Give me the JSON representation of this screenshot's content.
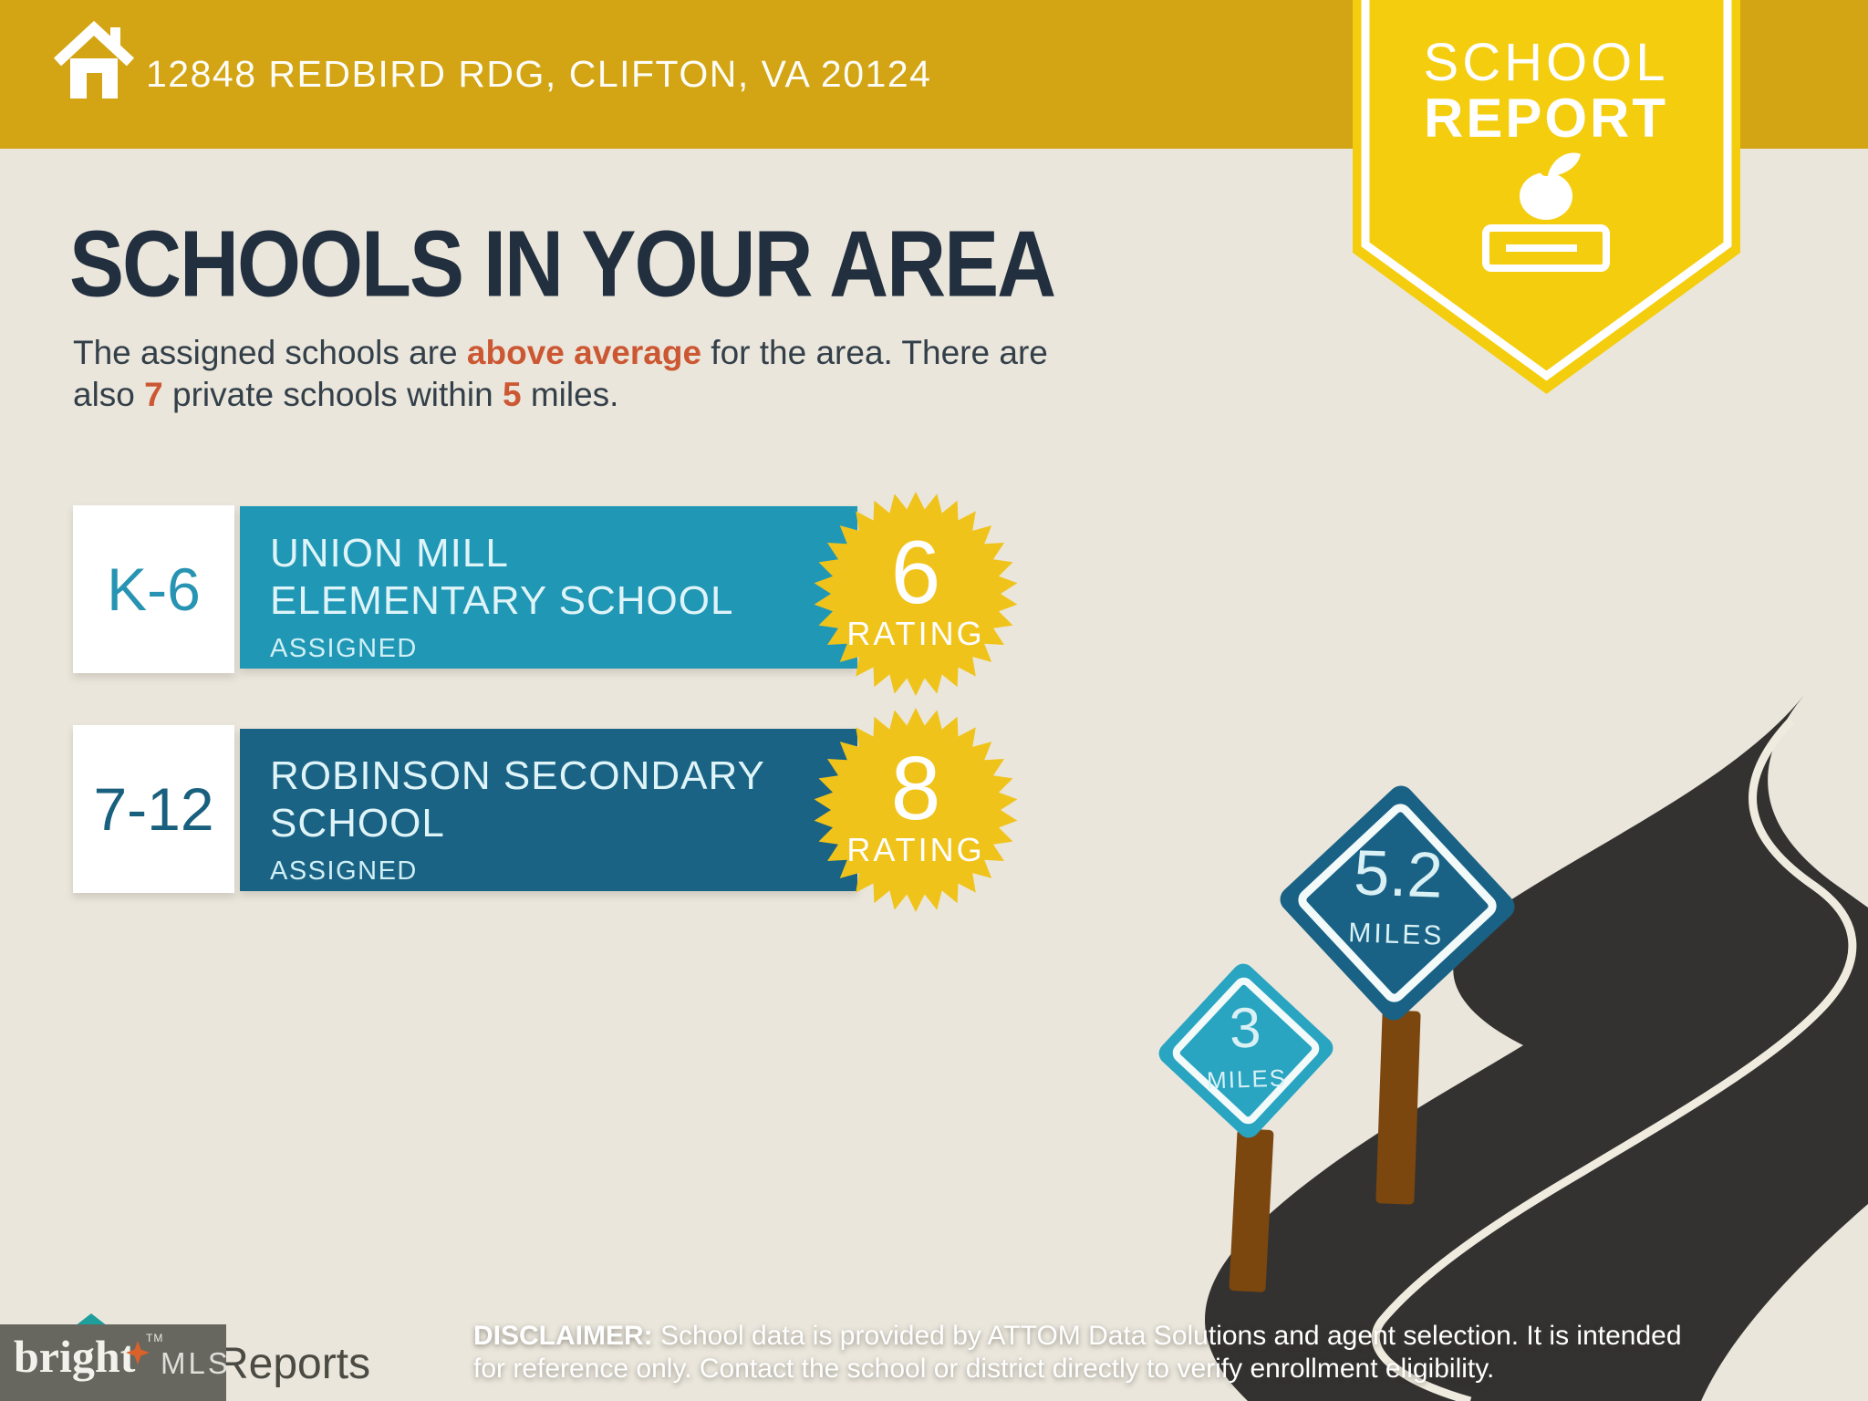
{
  "header": {
    "address": "12848 REDBIRD RDG, CLIFTON, VA 20124",
    "badge": {
      "line1": "SCHOOL",
      "line2": "REPORT"
    }
  },
  "main": {
    "title": "SCHOOLS IN YOUR AREA",
    "subtitle": {
      "line1": [
        "The assigned schools are ",
        "above average",
        " for the area. There are"
      ],
      "line2": [
        "also ",
        "7",
        " private schools within ",
        "5",
        " miles."
      ]
    }
  },
  "schools": [
    {
      "grades": "K-6",
      "name_line1": "UNION MILL",
      "name_line2": "ELEMENTARY SCHOOL",
      "status": "ASSIGNED",
      "rating": "6",
      "rating_label": "RATING"
    },
    {
      "grades": "7-12",
      "name_line1": "ROBINSON SECONDARY",
      "name_line2": "SCHOOL",
      "status": "ASSIGNED",
      "rating": "8",
      "rating_label": "RATING"
    }
  ],
  "signs": [
    {
      "distance": "3",
      "unit": "MILES"
    },
    {
      "distance": "5.2",
      "unit": "MILES"
    }
  ],
  "footer": {
    "logo": {
      "word": "bright",
      "tm": "TM",
      "suffix": "MLS"
    },
    "partner_text": "Reports",
    "disclaimer": {
      "label": "DISCLAIMER:",
      "line1_rest": " School data is provided by ATTOM Data Solutions and agent selection. It is intended",
      "line2": "for reference only. Contact the school or district directly to verify enrollment eligibility."
    }
  },
  "colors": {
    "background": "#EAE6DC",
    "banner_gold": "#D3A413",
    "badge_yellow": "#F4CD0E",
    "starburst_yellow": "#F0C31B",
    "elementary_teal": "#2097B5",
    "secondary_blue": "#1A6384",
    "title_navy": "#222F3E",
    "accent_orange": "#CC5833",
    "road_charcoal": "#343230",
    "road_line": "#EFEBDF",
    "post_brown": "#7B470F",
    "sign_small_teal": "#29A4C1",
    "sign_large_blue": "#1A6285"
  }
}
